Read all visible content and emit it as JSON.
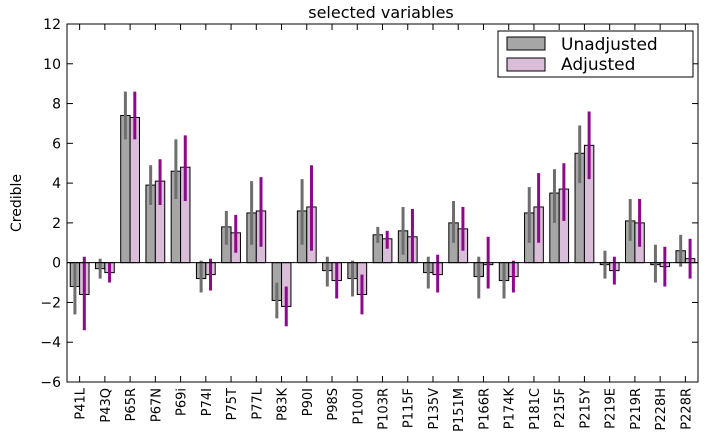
{
  "chart_data": {
    "type": "bar",
    "title": "selected variables",
    "xlabel": "",
    "ylabel": "Credible",
    "ylim": [
      -6,
      12
    ],
    "yticks": [
      -6,
      -4,
      -2,
      0,
      2,
      4,
      6,
      8,
      10,
      12
    ],
    "legend_position": "top-right",
    "categories": [
      "P41L",
      "P43Q",
      "P65R",
      "P67N",
      "P69i",
      "P74I",
      "P75T",
      "P77L",
      "P83K",
      "P90I",
      "P98S",
      "P100I",
      "P103R",
      "P115F",
      "P135V",
      "P151M",
      "P166R",
      "P174K",
      "P181C",
      "P215F",
      "P215Y",
      "P219E",
      "P219R",
      "P228H",
      "P228R"
    ],
    "series": [
      {
        "name": "Unadjusted",
        "color": "#a6a6a6",
        "error_color": "#6e6e6e",
        "values": [
          -1.2,
          -0.3,
          7.4,
          3.9,
          4.6,
          -0.8,
          1.8,
          2.5,
          -1.9,
          2.6,
          -0.4,
          -0.8,
          1.4,
          1.6,
          -0.5,
          2.0,
          -0.7,
          -0.9,
          2.5,
          3.5,
          5.5,
          -0.1,
          2.1,
          -0.1,
          0.6
        ],
        "lower": [
          -2.6,
          -0.8,
          6.2,
          2.9,
          3.2,
          -1.5,
          0.9,
          0.9,
          -2.8,
          0.9,
          -1.2,
          -1.7,
          1.0,
          0.4,
          -1.3,
          1.0,
          -1.8,
          -1.8,
          1.0,
          2.0,
          4.0,
          -0.8,
          1.1,
          -1.0,
          -0.2
        ],
        "upper": [
          0.0,
          0.2,
          8.6,
          4.9,
          6.2,
          0.1,
          2.6,
          4.1,
          -1.0,
          4.2,
          0.3,
          0.1,
          1.8,
          2.8,
          0.3,
          3.1,
          0.3,
          0.0,
          3.8,
          4.7,
          6.9,
          0.6,
          3.2,
          0.9,
          1.4
        ]
      },
      {
        "name": "Adjusted",
        "color": "#d9bdd9",
        "error_color": "#8b0a8b",
        "values": [
          -1.6,
          -0.5,
          7.3,
          4.1,
          4.8,
          -0.6,
          1.5,
          2.6,
          -2.2,
          2.8,
          -0.9,
          -1.6,
          1.2,
          1.3,
          -0.6,
          1.7,
          -0.1,
          -0.7,
          2.8,
          3.7,
          5.9,
          -0.4,
          2.0,
          -0.2,
          0.2
        ],
        "lower": [
          -3.4,
          -1.0,
          6.2,
          2.9,
          3.1,
          -1.4,
          0.5,
          0.8,
          -3.2,
          0.6,
          -1.8,
          -2.6,
          0.7,
          0.0,
          -1.5,
          0.6,
          -1.3,
          -1.5,
          1.0,
          2.1,
          4.2,
          -1.1,
          0.8,
          -1.2,
          -0.8
        ],
        "upper": [
          0.3,
          0.0,
          8.6,
          5.2,
          6.4,
          0.2,
          2.4,
          4.3,
          -1.2,
          4.9,
          0.0,
          -0.6,
          1.6,
          2.7,
          0.4,
          2.8,
          1.3,
          0.1,
          4.5,
          5.0,
          7.6,
          0.3,
          3.2,
          0.8,
          1.2
        ]
      }
    ]
  }
}
